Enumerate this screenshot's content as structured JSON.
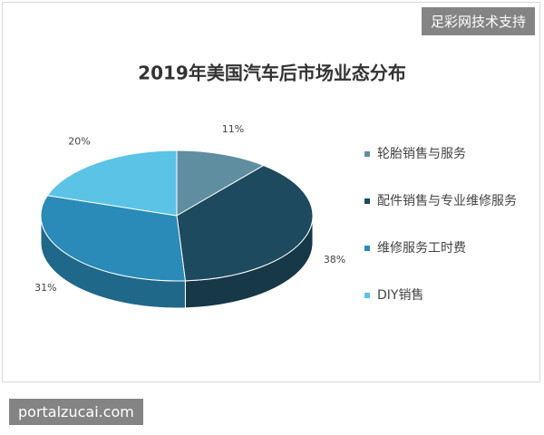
{
  "chart_data": {
    "type": "pie3d",
    "title": "2019年美国汽车后市场业态分布",
    "categories": [
      "轮胎销售与服务",
      "配件销售与专业维修服务",
      "维修服务工时费",
      "DIY销售"
    ],
    "values": [
      11,
      38,
      31,
      20
    ],
    "value_labels": [
      "11%",
      "38%",
      "31%",
      "20%"
    ],
    "colors": [
      "#5f8ea0",
      "#1d4a5e",
      "#2a8ab8",
      "#5bc4e6"
    ],
    "start_angle": 0,
    "direction": "clockwise",
    "legend": "right"
  },
  "overlay": {
    "top_right": "足彩网技术支持",
    "bottom_left": "portalzucai.com"
  }
}
